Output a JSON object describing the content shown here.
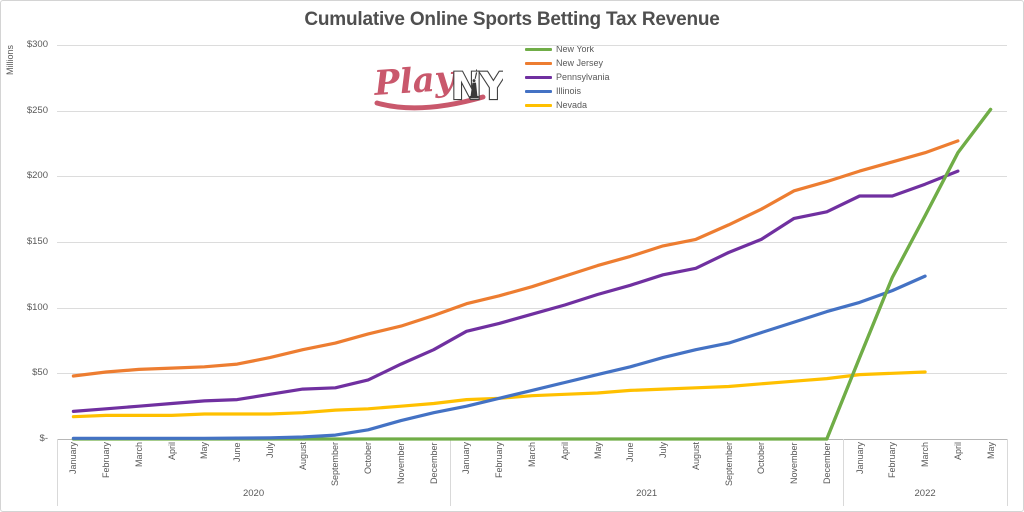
{
  "header": {
    "title": "Cumulative Online Sports Betting Tax Revenue"
  },
  "logo": {
    "play_text": "Play",
    "ny_text": "NY",
    "accent_color": "#c9586c",
    "outline_color": "#3f3f3f"
  },
  "legend": {
    "position": "top-center"
  },
  "chart_data": {
    "type": "line",
    "title": "Cumulative Online Sports Betting Tax Revenue",
    "ylabel": "Millions",
    "units": "USD millions",
    "ylim": [
      0,
      300
    ],
    "grid": "horizontal-only",
    "legend_position": "top-center",
    "y_ticks": [
      {
        "value": 300,
        "label": "$300"
      },
      {
        "value": 250,
        "label": "$250"
      },
      {
        "value": 200,
        "label": "$200"
      },
      {
        "value": 150,
        "label": "$150"
      },
      {
        "value": 100,
        "label": "$100"
      },
      {
        "value": 50,
        "label": "$50"
      },
      {
        "value": 0,
        "label": "$-"
      }
    ],
    "x_groups": [
      {
        "year": "2020",
        "months": [
          "January",
          "February",
          "March",
          "April",
          "May",
          "June",
          "July",
          "August",
          "September",
          "October",
          "November",
          "December"
        ]
      },
      {
        "year": "2021",
        "months": [
          "January",
          "February",
          "March",
          "April",
          "May",
          "June",
          "July",
          "August",
          "September",
          "October",
          "November",
          "December"
        ]
      },
      {
        "year": "2022",
        "months": [
          "January",
          "February",
          "March",
          "April",
          "May"
        ]
      }
    ],
    "series": [
      {
        "name": "New York",
        "color": "#70AD47",
        "values": [
          0,
          0,
          0,
          0,
          0,
          0,
          0,
          0,
          0,
          0,
          0,
          0,
          0,
          0,
          0,
          0,
          0,
          0,
          0,
          0,
          0,
          0,
          0,
          0,
          62,
          123,
          170,
          218,
          251
        ]
      },
      {
        "name": "New Jersey",
        "color": "#ED7D31",
        "values": [
          48,
          51,
          53,
          54,
          55,
          57,
          62,
          68,
          73,
          80,
          86,
          94,
          103,
          109,
          116,
          124,
          132,
          139,
          147,
          152,
          163,
          175,
          189,
          196,
          204,
          211,
          218,
          227,
          null
        ]
      },
      {
        "name": "Pennsylvania",
        "color": "#7030A0",
        "values": [
          21,
          23,
          25,
          27,
          29,
          30,
          34,
          38,
          39,
          45,
          57,
          68,
          82,
          88,
          95,
          102,
          110,
          117,
          125,
          130,
          142,
          152,
          168,
          173,
          185,
          185,
          194,
          204,
          null
        ]
      },
      {
        "name": "Illinois",
        "color": "#4472C4",
        "values": [
          0.5,
          0.5,
          0.5,
          0.5,
          0.5,
          0.7,
          0.8,
          1.5,
          3,
          7,
          14,
          20,
          25,
          31,
          37,
          43,
          49,
          55,
          62,
          68,
          73,
          81,
          89,
          97,
          104,
          113,
          124,
          null,
          null
        ]
      },
      {
        "name": "Nevada",
        "color": "#FFC000",
        "values": [
          17,
          18,
          18,
          18,
          19,
          19,
          19,
          20,
          22,
          23,
          25,
          27,
          30,
          31,
          33,
          34,
          35,
          37,
          38,
          39,
          40,
          42,
          44,
          46,
          49,
          50,
          51,
          null,
          null
        ]
      }
    ]
  }
}
